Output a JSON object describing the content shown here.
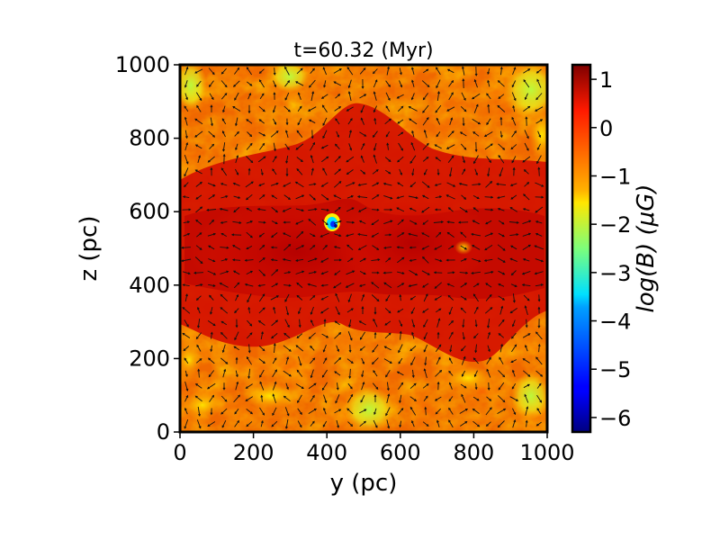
{
  "chart_data": {
    "type": "heatmap",
    "title": "t=60.32 (Myr)",
    "xlabel": "y (pc)",
    "ylabel": "z (pc)",
    "xlim": [
      0,
      1000
    ],
    "ylim": [
      0,
      1000
    ],
    "xticks": [
      "0",
      "200",
      "400",
      "600",
      "800",
      "1000"
    ],
    "yticks": [
      "0",
      "200",
      "400",
      "600",
      "800",
      "1000"
    ],
    "grid": false,
    "colorbar": {
      "label": "log(B) (μG)",
      "range": [
        -6.3,
        1.3
      ],
      "ticks": [
        "1",
        "0",
        "−1",
        "−2",
        "−3",
        "−4",
        "−5",
        "−6"
      ],
      "tick_values": [
        1,
        0,
        -1,
        -2,
        -3,
        -4,
        -5,
        -6
      ],
      "colormap": "jet"
    },
    "field_overlay": "magnetic field vectors (arrows)"
  }
}
